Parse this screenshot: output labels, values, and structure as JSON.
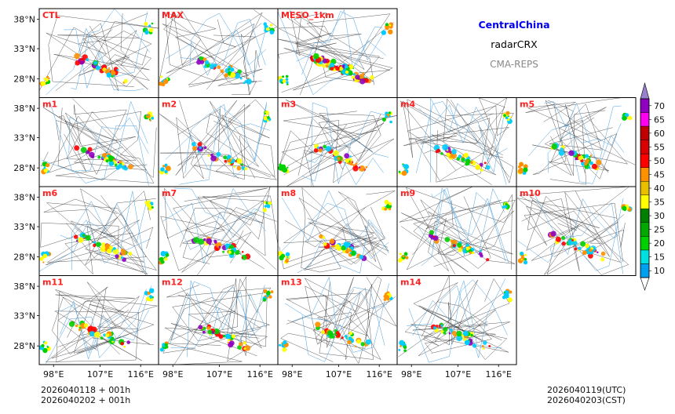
{
  "header": {
    "region": "CentralChina",
    "variable": "radarCRX",
    "system": "CMA-REPS",
    "region_color": "#0000ee",
    "system_color": "#888888"
  },
  "times": {
    "init_utc": "2026040118  +  001h",
    "init_cst": "2026040202  +  001h",
    "valid_utc": "2026040119(UTC)",
    "valid_cst": "2026040203(CST)"
  },
  "chart_data": {
    "type": "heatmap",
    "title": "",
    "panels": [
      "CTL",
      "MAX",
      "MESO_1km",
      "m1",
      "m2",
      "m3",
      "m4",
      "m5",
      "m6",
      "m7",
      "m8",
      "m9",
      "m10",
      "m11",
      "m12",
      "m13",
      "m14"
    ],
    "lat_ticks": [
      "38°N",
      "33°N",
      "28°N"
    ],
    "lon_ticks": [
      "98°E",
      "107°E",
      "116°E"
    ],
    "colorbar": {
      "levels": [
        10,
        15,
        20,
        25,
        30,
        35,
        40,
        45,
        50,
        55,
        60,
        65,
        70
      ],
      "labels": [
        "10",
        "15",
        "20",
        "25",
        "30",
        "35",
        "40",
        "45",
        "50",
        "55",
        "60",
        "65",
        "70"
      ],
      "colors": [
        "#00a0f0",
        "#00e0e0",
        "#00d000",
        "#00a800",
        "#008000",
        "#ffff00",
        "#e8c000",
        "#ff9000",
        "#ff0000",
        "#d80000",
        "#c00000",
        "#ff00f0",
        "#9000c0"
      ],
      "under_color": "#ffffff",
      "over_color": "#9980cc",
      "extend": "both"
    },
    "field_palette": [
      "#00ccff",
      "#00d000",
      "#ffff00",
      "#ff9000",
      "#ff0000",
      "#9000c0"
    ]
  }
}
